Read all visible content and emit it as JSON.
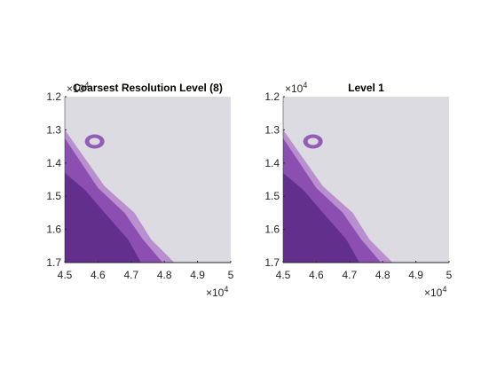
{
  "chart_data": [
    {
      "type": "image",
      "title": "Coarsest Resolution Level (8)",
      "x_ticks": [
        "4.5",
        "4.6",
        "4.7",
        "4.8",
        "4.9",
        "5"
      ],
      "y_ticks": [
        "1.2",
        "1.3",
        "1.4",
        "1.5",
        "1.6",
        "1.7"
      ],
      "x_exponent_base": "×10",
      "x_exponent": "4",
      "y_exponent_base": "×10",
      "y_exponent": "4",
      "xlim": [
        45000,
        50000
      ],
      "ylim": [
        12000,
        17000
      ],
      "y_reversed": true,
      "image_description": "tissue"
    },
    {
      "type": "image",
      "title": "Level 1",
      "x_ticks": [
        "4.5",
        "4.6",
        "4.7",
        "4.8",
        "4.9",
        "5"
      ],
      "y_ticks": [
        "1.2",
        "1.3",
        "1.4",
        "1.5",
        "1.6",
        "1.7"
      ],
      "x_exponent_base": "×10",
      "x_exponent": "4",
      "y_exponent_base": "×10",
      "y_exponent": "4",
      "xlim": [
        45000,
        50000
      ],
      "ylim": [
        12000,
        17000
      ],
      "y_reversed": true,
      "image_description": "tissue"
    }
  ],
  "colors": {
    "background": "#dddbe2",
    "tissue_dark": "#5a2a86",
    "tissue_mid": "#8a4fb0",
    "tissue_light": "#b98fd0",
    "axis": "#262626"
  }
}
